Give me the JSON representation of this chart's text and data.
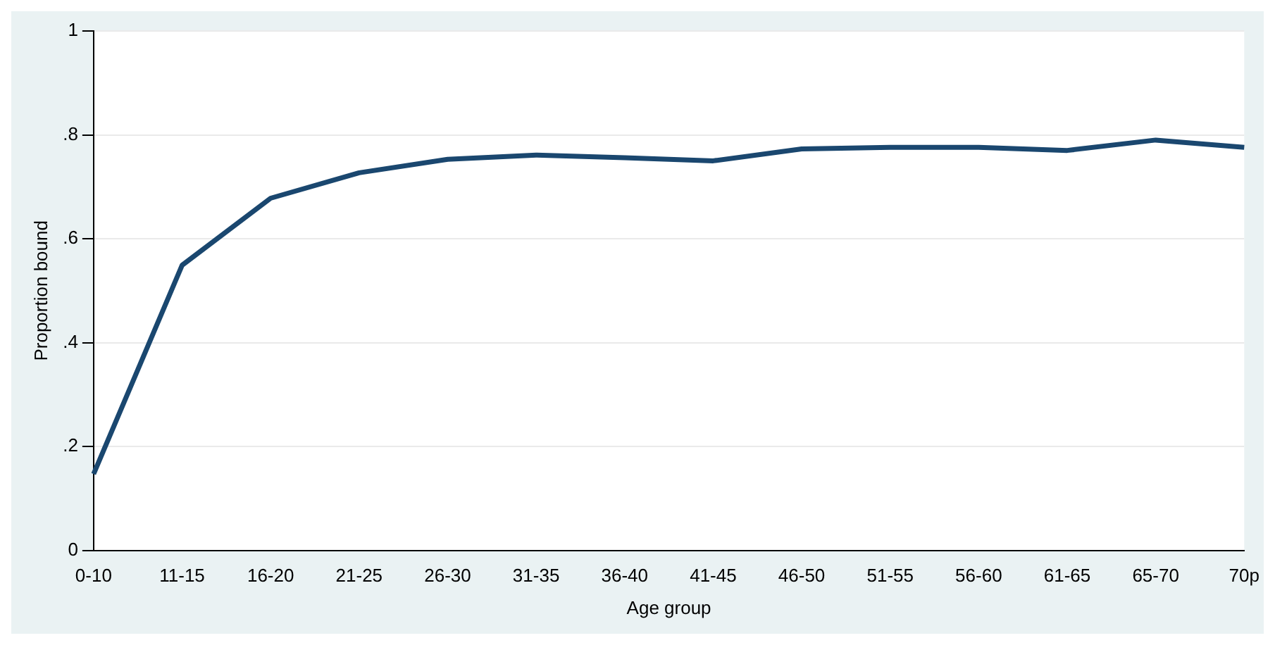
{
  "chart_data": {
    "type": "line",
    "xlabel": "Age group",
    "ylabel": "Proportion bound",
    "categories": [
      "0-10",
      "11-15",
      "16-20",
      "21-25",
      "26-30",
      "31-35",
      "36-40",
      "41-45",
      "46-50",
      "51-55",
      "56-60",
      "61-65",
      "65-70",
      "70p"
    ],
    "series": [
      {
        "color": "#1a476f",
        "values": [
          0.147,
          0.549,
          0.678,
          0.727,
          0.753,
          0.761,
          0.756,
          0.75,
          0.773,
          0.776,
          0.776,
          0.77,
          0.79,
          0.776
        ]
      }
    ],
    "ylim": [
      0,
      1
    ],
    "yticks": [
      0,
      {
        "value": 0.2,
        "label": ".2"
      },
      {
        "value": 0.4,
        "label": ".4"
      },
      {
        "value": 0.6,
        "label": ".6"
      },
      {
        "value": 0.8,
        "label": ".8"
      },
      1
    ],
    "grid": "y",
    "legend": false,
    "marker": "none",
    "line_style": "solid"
  }
}
